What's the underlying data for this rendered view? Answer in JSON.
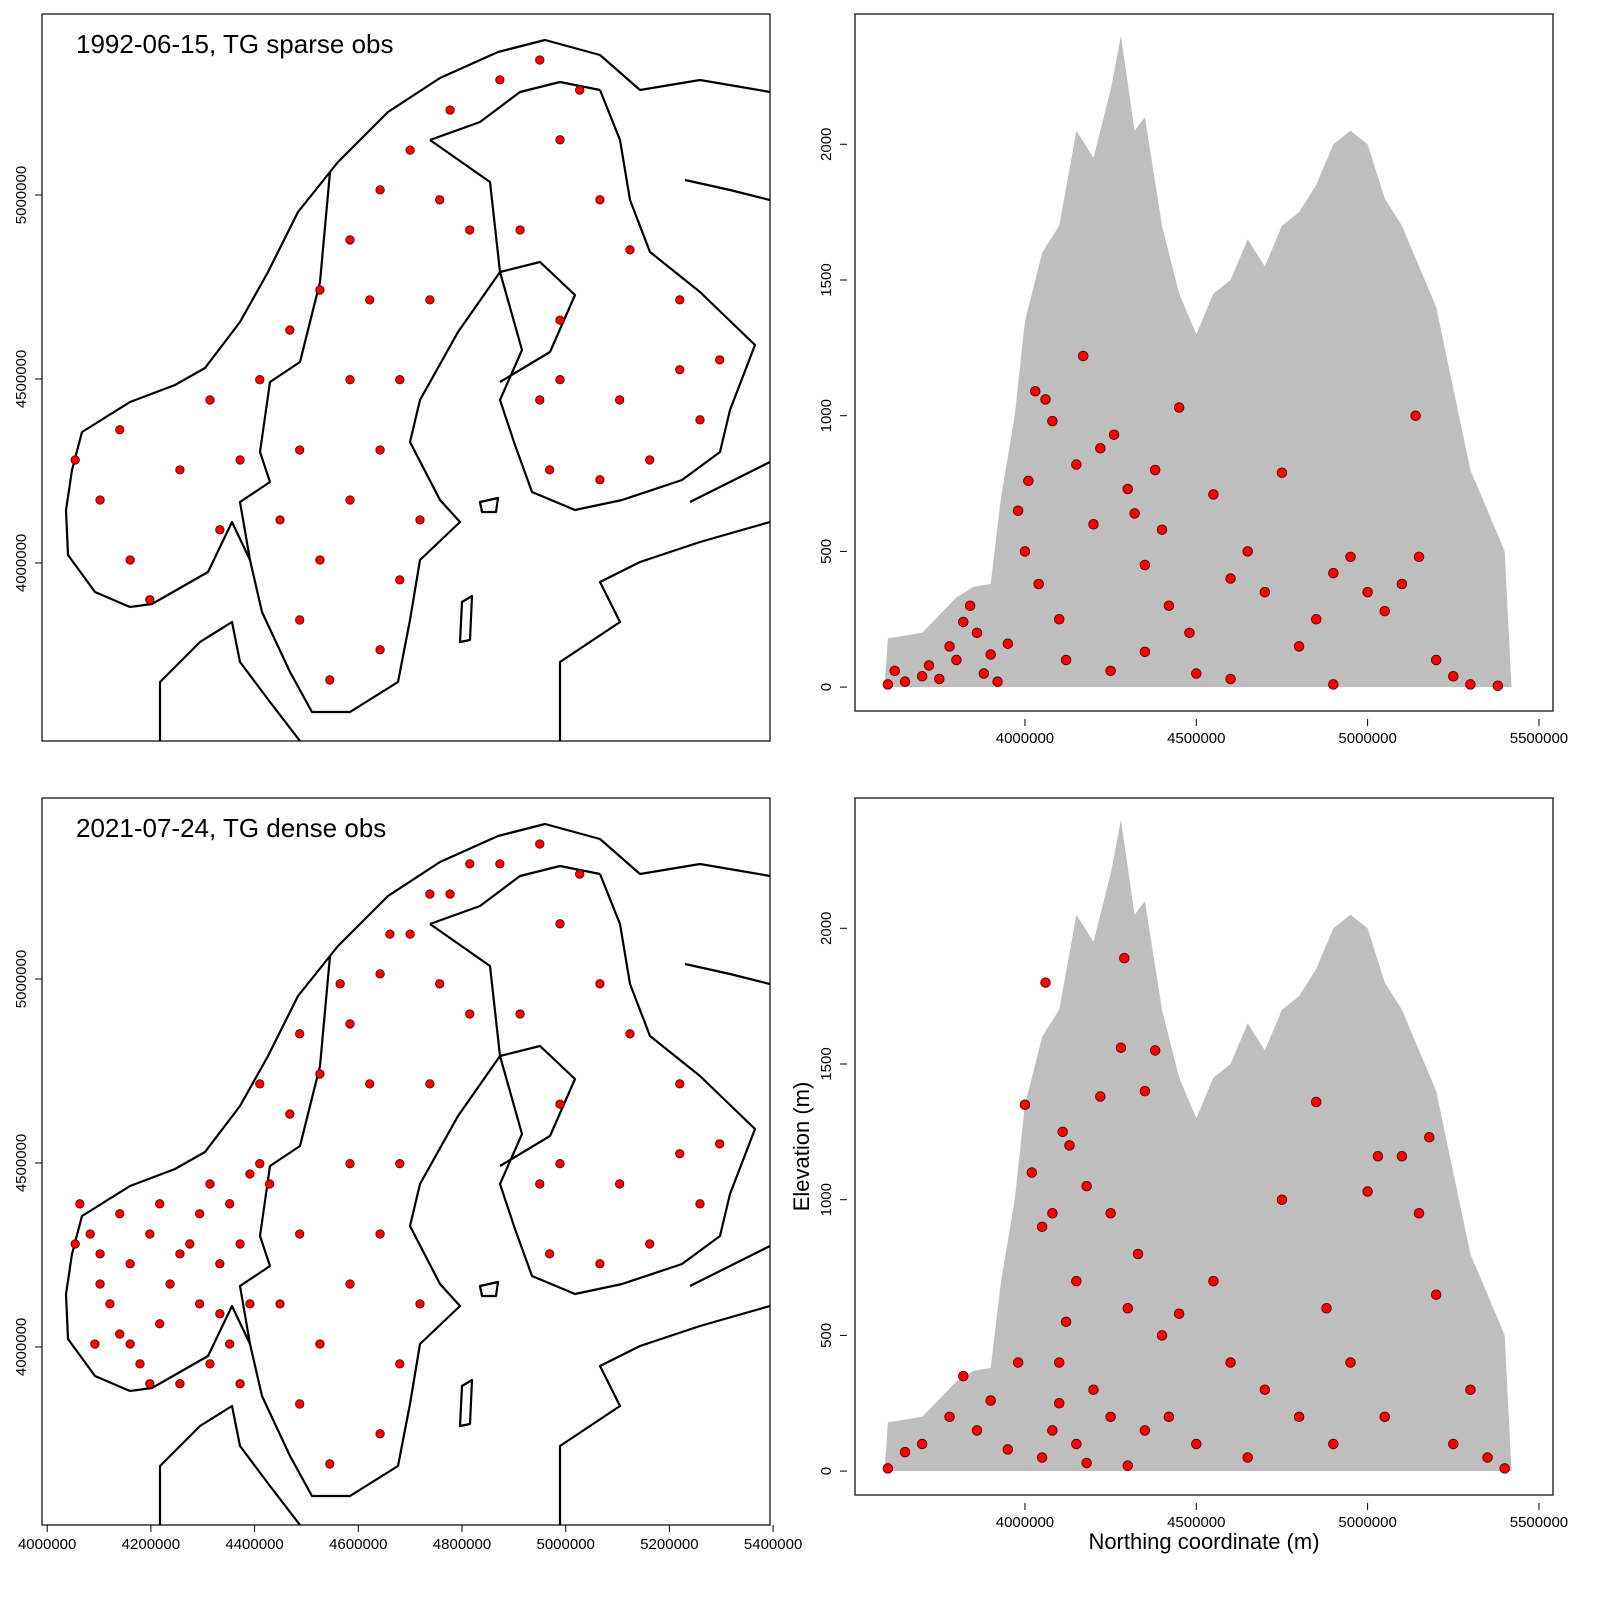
{
  "chart_data": [
    {
      "type": "map",
      "title": "1992-06-15, TG sparse obs",
      "xlim": [
        3990000,
        5394000
      ],
      "ylim": [
        3516000,
        5492000
      ],
      "yticks": [
        4000000,
        4500000,
        5000000
      ],
      "series": [
        {
          "type": "scatter",
          "color": "#ff0000",
          "x": [
            4054000,
            4102000,
            4160000,
            4140000,
            4198000,
            4256000,
            4314000,
            4333000,
            4372000,
            4410000,
            4468000,
            4526000,
            4584000,
            4642000,
            4700000,
            4777000,
            4873000,
            4950000,
            5027000,
            4989000,
            5066000,
            5124000,
            5220000,
            5297000,
            5259000,
            5162000,
            5066000,
            4969000,
            4950000,
            4989000,
            4912000,
            4815000,
            4738000,
            4680000,
            4642000,
            4584000,
            4526000,
            4487000,
            4545000,
            4642000,
            4680000,
            4719000,
            4487000,
            4449000,
            4584000,
            4622000,
            4757000,
            4989000,
            5104000,
            5220000
          ],
          "values": [
            4280000,
            4171000,
            4008000,
            4362000,
            3900000,
            4253000,
            4443000,
            4090000,
            4280000,
            4498000,
            4633000,
            4742000,
            4878000,
            5014000,
            5122000,
            5231000,
            5313000,
            5367000,
            5285000,
            5150000,
            4987000,
            4851000,
            4715000,
            4552000,
            4389000,
            4280000,
            4226000,
            4253000,
            4443000,
            4660000,
            4905000,
            4905000,
            4715000,
            4498000,
            4307000,
            4171000,
            4008000,
            3845000,
            3682000,
            3764000,
            3954000,
            4117000,
            4307000,
            4117000,
            4498000,
            4715000,
            4987000,
            4498000,
            4443000,
            4525000
          ]
        }
      ]
    },
    {
      "type": "scatter",
      "xlim": [
        3504000,
        5541000
      ],
      "ylim": [
        -88,
        2480
      ],
      "xticks": [
        4000000,
        4500000,
        5000000,
        5500000
      ],
      "yticks": [
        0,
        500,
        1000,
        1500,
        2000
      ],
      "series": [
        {
          "type": "area",
          "color": "#bebebe",
          "x": [
            3590000,
            3600000,
            3700000,
            3800000,
            3850000,
            3900000,
            3930000,
            3970000,
            4000000,
            4050000,
            4100000,
            4150000,
            4200000,
            4250000,
            4280000,
            4320000,
            4350000,
            4400000,
            4450000,
            4500000,
            4550000,
            4600000,
            4650000,
            4700000,
            4750000,
            4800000,
            4850000,
            4900000,
            4950000,
            5000000,
            5050000,
            5100000,
            5150000,
            5200000,
            5250000,
            5300000,
            5350000,
            5400000,
            5420000
          ],
          "values": [
            0,
            180,
            200,
            330,
            370,
            380,
            700,
            1000,
            1350,
            1600,
            1700,
            2050,
            1950,
            2200,
            2400,
            2050,
            2100,
            1700,
            1450,
            1300,
            1450,
            1500,
            1650,
            1550,
            1700,
            1750,
            1850,
            2000,
            2050,
            2000,
            1800,
            1700,
            1550,
            1400,
            1100,
            800,
            650,
            500,
            0
          ]
        },
        {
          "type": "scatter",
          "color": "#ff0000",
          "x": [
            3600000,
            3620000,
            3650000,
            3700000,
            3720000,
            3750000,
            3780000,
            3800000,
            3820000,
            3840000,
            3860000,
            3880000,
            3900000,
            3920000,
            3950000,
            3980000,
            4000000,
            4010000,
            4030000,
            4040000,
            4060000,
            4080000,
            4100000,
            4120000,
            4150000,
            4170000,
            4200000,
            4220000,
            4260000,
            4300000,
            4320000,
            4350000,
            4380000,
            4400000,
            4420000,
            4450000,
            4480000,
            4500000,
            4550000,
            4600000,
            4650000,
            4700000,
            4750000,
            4800000,
            4850000,
            4900000,
            4950000,
            5000000,
            5050000,
            5100000,
            5140000,
            5150000,
            5200000,
            5250000,
            5300000,
            5380000,
            4250000,
            4350000,
            4600000,
            4900000
          ],
          "values": [
            10,
            60,
            20,
            40,
            80,
            30,
            150,
            100,
            240,
            300,
            200,
            50,
            120,
            20,
            160,
            650,
            500,
            760,
            1090,
            380,
            1060,
            980,
            250,
            100,
            820,
            1220,
            600,
            880,
            930,
            730,
            640,
            450,
            800,
            580,
            300,
            1030,
            200,
            50,
            710,
            400,
            500,
            350,
            790,
            150,
            250,
            420,
            480,
            350,
            280,
            380,
            1000,
            480,
            100,
            40,
            10,
            5,
            60,
            130,
            30,
            10
          ]
        }
      ]
    },
    {
      "type": "map",
      "title": "2021-07-24, TG dense obs",
      "xlim": [
        3990000,
        5394000
      ],
      "ylim": [
        3516000,
        5492000
      ],
      "xticks": [
        4000000,
        4200000,
        4400000,
        4600000,
        4800000,
        5000000,
        5200000,
        5400000
      ],
      "yticks": [
        4000000,
        4500000,
        5000000
      ],
      "series": [
        {
          "type": "scatter",
          "color": "#ff0000",
          "x": [
            4054000,
            4102000,
            4160000,
            4140000,
            4198000,
            4256000,
            4314000,
            4333000,
            4372000,
            4410000,
            4468000,
            4526000,
            4584000,
            4642000,
            4700000,
            4777000,
            4873000,
            4950000,
            5027000,
            4989000,
            5066000,
            5124000,
            5220000,
            5297000,
            5259000,
            5162000,
            5066000,
            4969000,
            4950000,
            4989000,
            4912000,
            4815000,
            4738000,
            4680000,
            4642000,
            4584000,
            4526000,
            4487000,
            4545000,
            4642000,
            4680000,
            4719000,
            4487000,
            4449000,
            4584000,
            4622000,
            4757000,
            4989000,
            5104000,
            5220000,
            4063000,
            4083000,
            4102000,
            4121000,
            4140000,
            4179000,
            4217000,
            4237000,
            4275000,
            4294000,
            4333000,
            4352000,
            4372000,
            4391000,
            4314000,
            4256000,
            4198000,
            4160000,
            4092000,
            4217000,
            4294000,
            4352000,
            4391000,
            4429000,
            4410000,
            4487000,
            4565000,
            4661000,
            4738000,
            4815000
          ],
          "values": [
            4280000,
            4171000,
            4008000,
            4362000,
            3900000,
            4253000,
            4443000,
            4090000,
            4280000,
            4498000,
            4633000,
            4742000,
            4878000,
            5014000,
            5122000,
            5231000,
            5313000,
            5367000,
            5285000,
            5150000,
            4987000,
            4851000,
            4715000,
            4552000,
            4389000,
            4280000,
            4226000,
            4253000,
            4443000,
            4660000,
            4905000,
            4905000,
            4715000,
            4498000,
            4307000,
            4171000,
            4008000,
            3845000,
            3682000,
            3764000,
            3954000,
            4117000,
            4307000,
            4117000,
            4498000,
            4715000,
            4987000,
            4498000,
            4443000,
            4525000,
            4389000,
            4307000,
            4253000,
            4117000,
            4035000,
            3954000,
            4063000,
            4171000,
            4280000,
            4117000,
            4226000,
            4008000,
            3900000,
            4117000,
            3954000,
            3900000,
            4307000,
            4226000,
            4008000,
            4389000,
            4362000,
            4389000,
            4470000,
            4443000,
            4715000,
            4851000,
            4987000,
            5122000,
            5231000,
            5313000
          ]
        }
      ]
    },
    {
      "type": "scatter",
      "xlabel": "Northing coordinate (m)",
      "ylabel": "Elevation (m)",
      "xlim": [
        3504000,
        5541000
      ],
      "ylim": [
        -88,
        2480
      ],
      "xticks": [
        4000000,
        4500000,
        5000000,
        5500000
      ],
      "yticks": [
        0,
        500,
        1000,
        1500,
        2000
      ],
      "series": [
        {
          "type": "area",
          "color": "#bebebe",
          "x": [
            3590000,
            3600000,
            3700000,
            3800000,
            3850000,
            3900000,
            3930000,
            3970000,
            4000000,
            4050000,
            4100000,
            4150000,
            4200000,
            4250000,
            4280000,
            4320000,
            4350000,
            4400000,
            4450000,
            4500000,
            4550000,
            4600000,
            4650000,
            4700000,
            4750000,
            4800000,
            4850000,
            4900000,
            4950000,
            5000000,
            5050000,
            5100000,
            5150000,
            5200000,
            5250000,
            5300000,
            5350000,
            5400000,
            5420000
          ],
          "values": [
            0,
            180,
            200,
            330,
            370,
            380,
            700,
            1000,
            1350,
            1600,
            1700,
            2050,
            1950,
            2200,
            2400,
            2050,
            2100,
            1700,
            1450,
            1300,
            1450,
            1500,
            1650,
            1550,
            1700,
            1750,
            1850,
            2000,
            2050,
            2000,
            1800,
            1700,
            1550,
            1400,
            1100,
            800,
            650,
            500,
            0
          ]
        },
        {
          "type": "scatter",
          "color": "#ff0000",
          "x": [
            3600000,
            3650000,
            3700000,
            3780000,
            3820000,
            3860000,
            3900000,
            3950000,
            4000000,
            4020000,
            4050000,
            4060000,
            4080000,
            4100000,
            4110000,
            4130000,
            4150000,
            4180000,
            4200000,
            4220000,
            4250000,
            4280000,
            4290000,
            4300000,
            4330000,
            4350000,
            4380000,
            4400000,
            4420000,
            4450000,
            4500000,
            4550000,
            4600000,
            4650000,
            4700000,
            4750000,
            4800000,
            4850000,
            4880000,
            4900000,
            4950000,
            5000000,
            5030000,
            5050000,
            5100000,
            5150000,
            5180000,
            5200000,
            5250000,
            5300000,
            5350000,
            5400000,
            4050000,
            4080000,
            4100000,
            4150000,
            4180000,
            4250000,
            4300000,
            4350000,
            3980000,
            4120000
          ],
          "values": [
            10,
            70,
            100,
            200,
            350,
            150,
            260,
            80,
            1350,
            1100,
            900,
            1800,
            950,
            400,
            1250,
            1200,
            700,
            1050,
            300,
            1380,
            950,
            1560,
            1890,
            600,
            800,
            1400,
            1550,
            500,
            200,
            580,
            100,
            700,
            400,
            50,
            300,
            1000,
            200,
            1360,
            600,
            100,
            400,
            1030,
            1160,
            200,
            1160,
            950,
            1230,
            650,
            100,
            300,
            50,
            10,
            50,
            150,
            250,
            100,
            30,
            200,
            20,
            150,
            400,
            550
          ]
        }
      ]
    }
  ]
}
